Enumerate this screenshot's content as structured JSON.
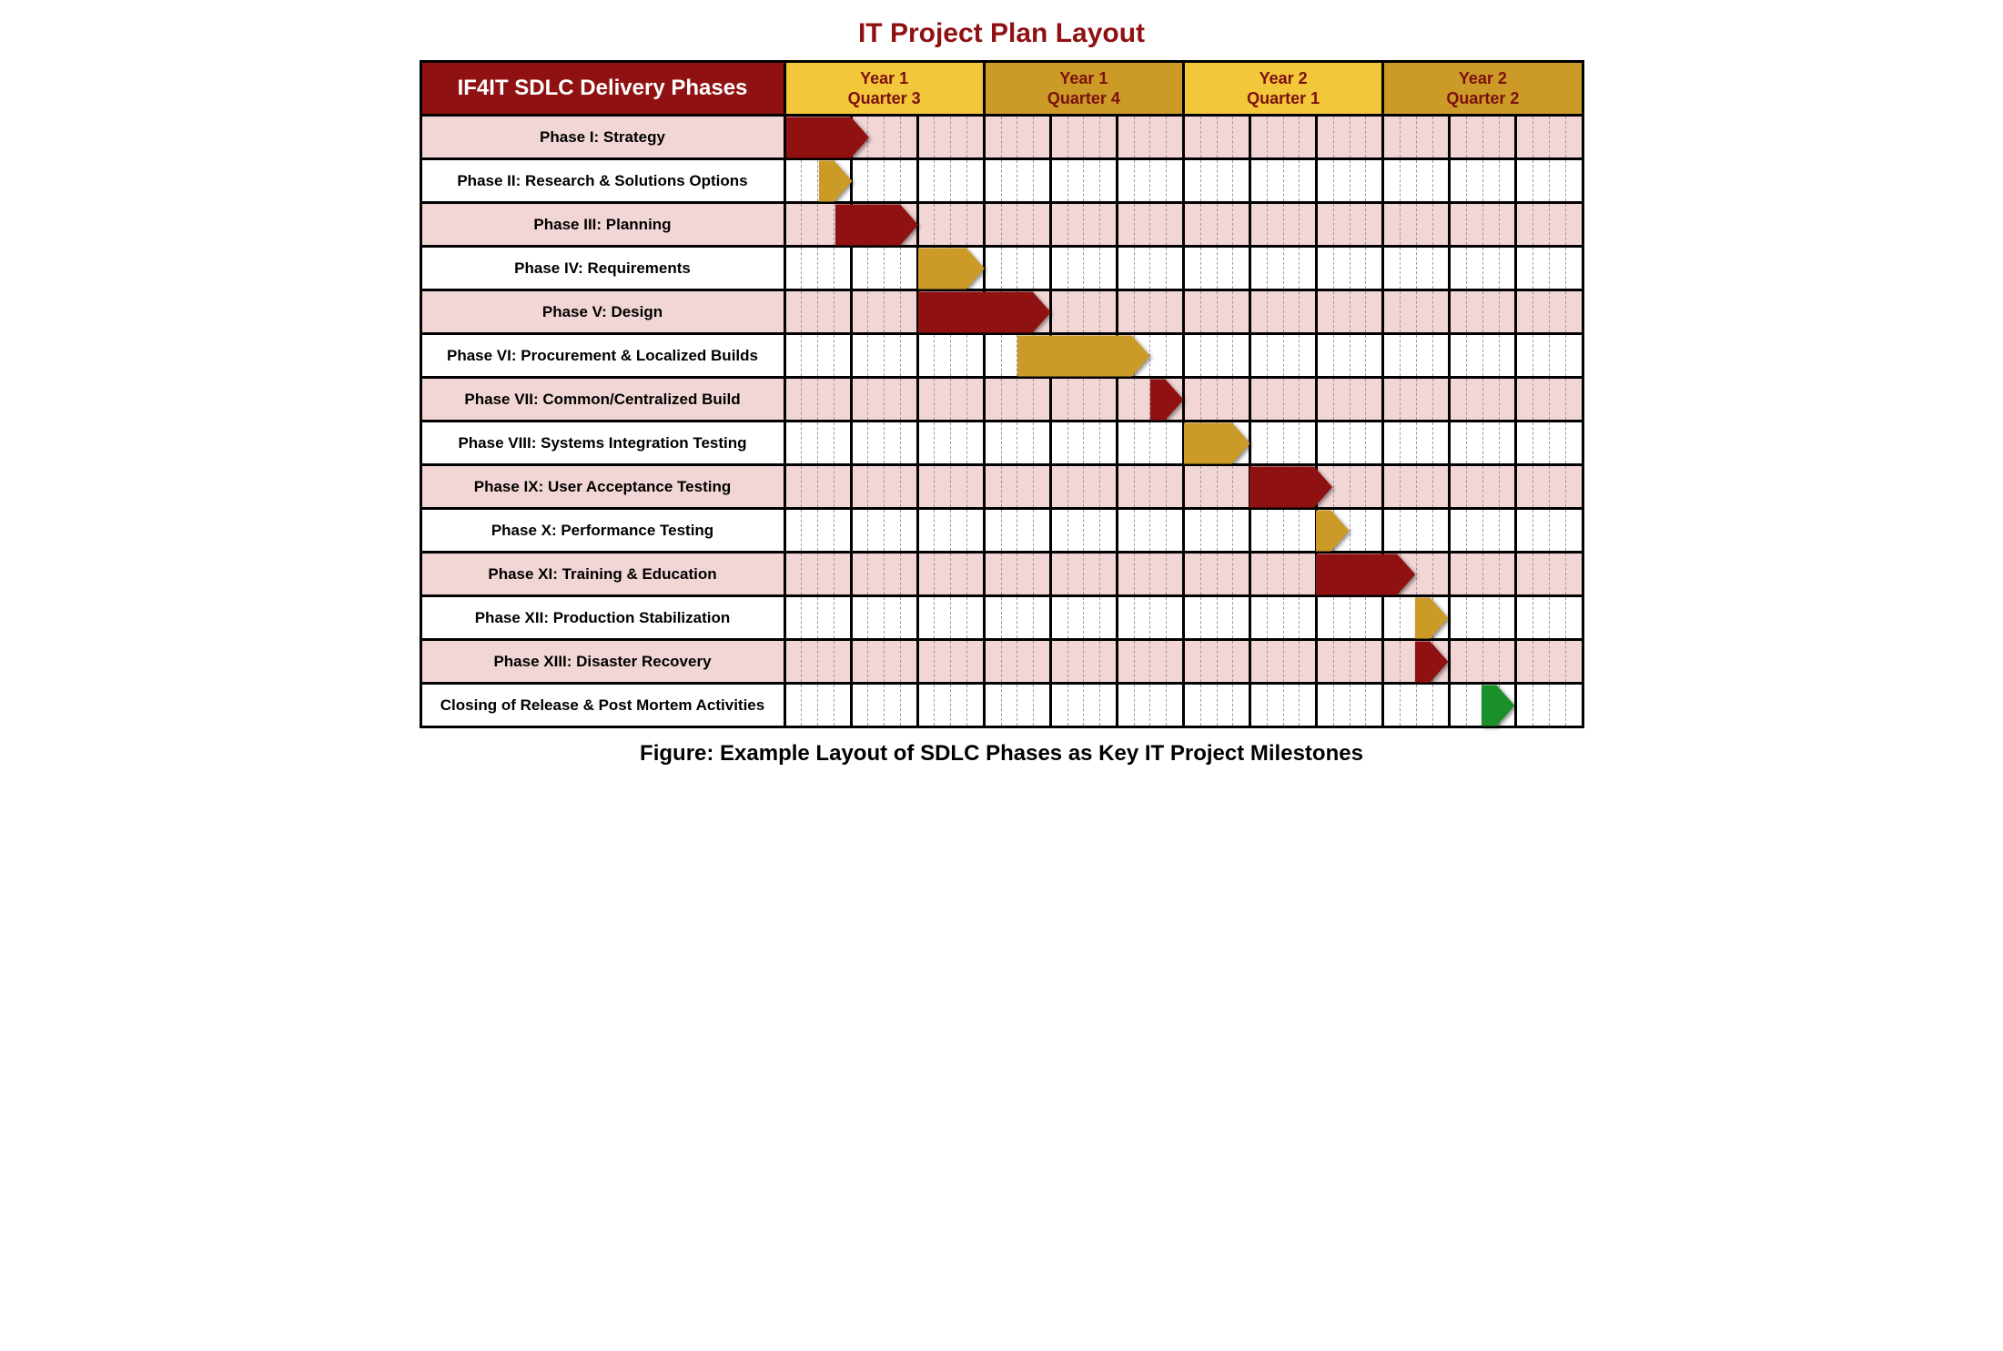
{
  "title": "IT Project Plan Layout",
  "caption": "Figure: Example Layout of SDLC Phases as Key IT Project Milestones",
  "title_color": "#8f1111",
  "caption_color": "#000000",
  "header": {
    "left_label": "IF4IT SDLC Delivery Phases",
    "left_bg": "#8f1111",
    "left_text_color": "#ffffff",
    "left_border_bg": "#8f1111",
    "quarters": [
      {
        "year": "Year 1",
        "quarter": "Quarter 3",
        "bg": "#f2c73a",
        "text": "#7a1010"
      },
      {
        "year": "Year 1",
        "quarter": "Quarter 4",
        "bg": "#cc9a27",
        "text": "#7a1010"
      },
      {
        "year": "Year 2",
        "quarter": "Quarter 1",
        "bg": "#f2c73a",
        "text": "#7a1010"
      },
      {
        "year": "Year 2",
        "quarter": "Quarter 2",
        "bg": "#cc9a27",
        "text": "#7a1010"
      }
    ]
  },
  "grid": {
    "months": 12,
    "weeks_per_month": 4,
    "total_units": 48,
    "solid_border_color": "#000000",
    "dashed_border_color": "#9a9a9a"
  },
  "colors": {
    "maroon": "#8f1111",
    "gold": "#cc9a27",
    "green": "#1a8f2a",
    "row_pink": "#f2d6d6",
    "row_white": "#ffffff"
  },
  "rows": [
    {
      "label": "Phase I: Strategy",
      "bg": "pink",
      "bar": {
        "start": 0,
        "span": 5,
        "color": "maroon"
      }
    },
    {
      "label": "Phase II: Research & Solutions Options",
      "bg": "white",
      "bar": {
        "start": 2,
        "span": 2,
        "color": "gold"
      }
    },
    {
      "label": "Phase III: Planning",
      "bg": "pink",
      "bar": {
        "start": 3,
        "span": 5,
        "color": "maroon"
      }
    },
    {
      "label": "Phase IV: Requirements",
      "bg": "white",
      "bar": {
        "start": 8,
        "span": 4,
        "color": "gold"
      }
    },
    {
      "label": "Phase V: Design",
      "bg": "pink",
      "bar": {
        "start": 8,
        "span": 8,
        "color": "maroon"
      }
    },
    {
      "label": "Phase VI: Procurement & Localized Builds",
      "bg": "white",
      "bar": {
        "start": 14,
        "span": 8,
        "color": "gold"
      }
    },
    {
      "label": "Phase VII: Common/Centralized Build",
      "bg": "pink",
      "bar": {
        "start": 22,
        "span": 2,
        "color": "maroon"
      }
    },
    {
      "label": "Phase VIII: Systems Integration Testing",
      "bg": "white",
      "bar": {
        "start": 24,
        "span": 4,
        "color": "gold"
      }
    },
    {
      "label": "Phase IX: User Acceptance Testing",
      "bg": "pink",
      "bar": {
        "start": 28,
        "span": 5,
        "color": "maroon"
      }
    },
    {
      "label": "Phase X: Performance Testing",
      "bg": "white",
      "bar": {
        "start": 32,
        "span": 2,
        "color": "gold"
      }
    },
    {
      "label": "Phase XI: Training & Education",
      "bg": "pink",
      "bar": {
        "start": 32,
        "span": 6,
        "color": "maroon"
      }
    },
    {
      "label": "Phase XII: Production Stabilization",
      "bg": "white",
      "bar": {
        "start": 38,
        "span": 2,
        "color": "gold"
      }
    },
    {
      "label": "Phase XIII: Disaster Recovery",
      "bg": "pink",
      "bar": {
        "start": 38,
        "span": 2,
        "color": "maroon"
      }
    },
    {
      "label": "Closing of Release & Post Mortem Activities",
      "bg": "white",
      "bar": {
        "start": 42,
        "span": 2,
        "color": "green"
      }
    }
  ],
  "bar_style": {
    "height_ratio": 1.0,
    "arrow_head_ratio": 0.35
  }
}
